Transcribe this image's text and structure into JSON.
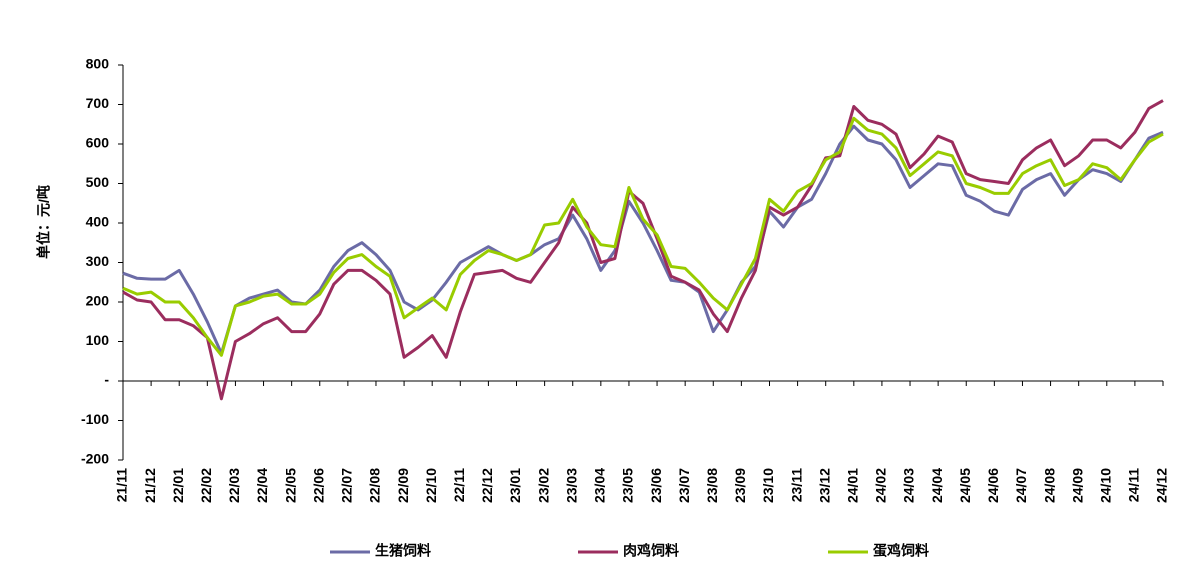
{
  "chart_data": {
    "type": "line",
    "y_label": "单位：元/吨",
    "categories": [
      "21/11",
      null,
      "21/12",
      null,
      "22/01",
      null,
      "22/02",
      null,
      "22/03",
      null,
      "22/04",
      null,
      "22/05",
      null,
      "22/06",
      null,
      "22/07",
      null,
      "22/08",
      null,
      "22/09",
      null,
      "22/10",
      null,
      "22/11",
      null,
      "22/12",
      null,
      "23/01",
      null,
      "23/02",
      null,
      "23/03",
      null,
      "23/04",
      null,
      "23/05",
      null,
      "23/06",
      null,
      "23/07",
      null,
      "23/08",
      null,
      "23/09",
      null,
      "23/10",
      null,
      "23/11",
      null,
      "23/12",
      null,
      "24/01",
      null,
      "24/02",
      null,
      "24/03",
      null,
      "24/04",
      null,
      "24/05",
      null,
      "24/06",
      null,
      "24/07",
      null,
      "24/08",
      null,
      "24/09",
      null,
      "24/10",
      null,
      "24/11",
      null,
      "24/12"
    ],
    "series": [
      {
        "name": "生猪饲料",
        "color": "#6b6ba6",
        "values": [
          273,
          260,
          258,
          258,
          280,
          220,
          150,
          70,
          190,
          210,
          220,
          230,
          200,
          195,
          230,
          290,
          330,
          350,
          320,
          280,
          200,
          180,
          205,
          250,
          300,
          320,
          340,
          320,
          305,
          320,
          345,
          360,
          420,
          360,
          280,
          330,
          455,
          400,
          330,
          255,
          250,
          225,
          125,
          180,
          250,
          290,
          430,
          390,
          440,
          460,
          525,
          600,
          645,
          610,
          600,
          560,
          490,
          520,
          550,
          545,
          470,
          455,
          430,
          420,
          485,
          510,
          525,
          470,
          510,
          535,
          525,
          505,
          560,
          615,
          630
        ]
      },
      {
        "name": "肉鸡饲料",
        "color": "#9b2d5e",
        "values": [
          225,
          205,
          200,
          155,
          155,
          140,
          110,
          -45,
          100,
          120,
          145,
          160,
          125,
          125,
          170,
          245,
          280,
          280,
          255,
          220,
          60,
          85,
          115,
          60,
          175,
          270,
          275,
          280,
          260,
          250,
          300,
          350,
          440,
          400,
          300,
          310,
          480,
          450,
          360,
          265,
          250,
          230,
          170,
          125,
          210,
          280,
          440,
          420,
          440,
          495,
          565,
          570,
          695,
          660,
          650,
          625,
          540,
          575,
          620,
          605,
          525,
          510,
          505,
          500,
          560,
          590,
          610,
          545,
          570,
          610,
          610,
          590,
          630,
          690,
          710
        ]
      },
      {
        "name": "蛋鸡饲料",
        "color": "#99cc00",
        "values": [
          235,
          220,
          225,
          200,
          200,
          160,
          110,
          65,
          190,
          200,
          215,
          220,
          195,
          195,
          220,
          275,
          310,
          320,
          290,
          265,
          160,
          185,
          210,
          180,
          270,
          305,
          330,
          320,
          305,
          320,
          395,
          400,
          460,
          390,
          345,
          340,
          490,
          410,
          370,
          290,
          285,
          250,
          210,
          180,
          245,
          310,
          460,
          430,
          480,
          500,
          560,
          580,
          665,
          635,
          625,
          590,
          520,
          550,
          580,
          570,
          500,
          490,
          475,
          475,
          525,
          545,
          560,
          495,
          510,
          550,
          540,
          510,
          560,
          605,
          625
        ]
      }
    ],
    "ylim": [
      -200,
      800
    ],
    "yticks": [
      800,
      700,
      600,
      500,
      400,
      300,
      200,
      100,
      {
        "value": 0,
        "label": "-"
      },
      -100,
      -200
    ],
    "grid": false,
    "legend": "bottom"
  }
}
